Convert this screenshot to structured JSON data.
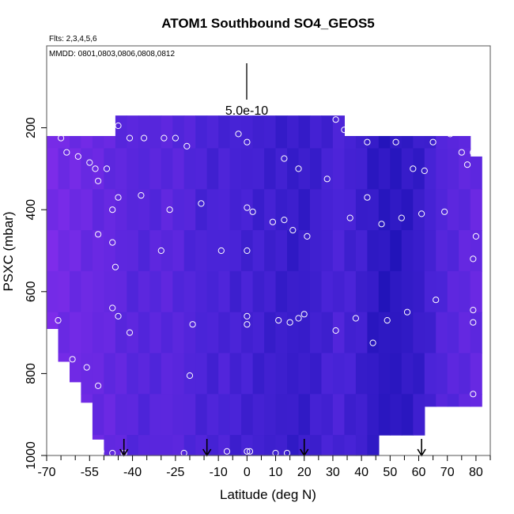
{
  "chart_data": {
    "type": "heatmap",
    "title": "ATOM1 Southbound SO4_GEOS5",
    "flights_label": "Flts: 2,3,4,5,6",
    "dates_label": "MMDD: 0801,0803,0806,0808,0812",
    "scale_label": "5.0e-10",
    "xlabel": "Latitude (deg N)",
    "ylabel": "PSXC (mbar)",
    "xlim": [
      -70,
      85
    ],
    "ylim": [
      1000,
      0
    ],
    "x_ticks": [
      -70,
      -55,
      -40,
      -25,
      -10,
      0,
      10,
      20,
      30,
      40,
      50,
      60,
      70,
      80
    ],
    "x_minor_ticks": [
      -65,
      -60,
      -50,
      -45,
      -35,
      -30,
      -20,
      -15,
      -5,
      5,
      15,
      25,
      35,
      45,
      55,
      65,
      75,
      85
    ],
    "y_ticks": [
      200,
      400,
      600,
      800,
      1000
    ],
    "grid": false,
    "colors": {
      "low": "#0a0aa8",
      "mid": "#4a24d8",
      "high": "#8a2eee",
      "outline": "#555555",
      "marker": "#ffffff",
      "arrow": "#000000"
    },
    "columns": [
      {
        "lat": -68,
        "p_top": 220,
        "p_bot": 690,
        "v": 0.85
      },
      {
        "lat": -64,
        "p_top": 220,
        "p_bot": 770,
        "v": 0.8
      },
      {
        "lat": -60,
        "p_top": 220,
        "p_bot": 820,
        "v": 0.78
      },
      {
        "lat": -56,
        "p_top": 220,
        "p_bot": 870,
        "v": 0.75
      },
      {
        "lat": -52,
        "p_top": 220,
        "p_bot": 960,
        "v": 0.72
      },
      {
        "lat": -48,
        "p_top": 220,
        "p_bot": 1000,
        "v": 0.7
      },
      {
        "lat": -44,
        "p_top": 170,
        "p_bot": 1000,
        "v": 0.65
      },
      {
        "lat": -40,
        "p_top": 170,
        "p_bot": 1000,
        "v": 0.6
      },
      {
        "lat": -36,
        "p_top": 170,
        "p_bot": 1000,
        "v": 0.58
      },
      {
        "lat": -32,
        "p_top": 170,
        "p_bot": 1000,
        "v": 0.6
      },
      {
        "lat": -28,
        "p_top": 170,
        "p_bot": 1000,
        "v": 0.62
      },
      {
        "lat": -24,
        "p_top": 170,
        "p_bot": 1000,
        "v": 0.6
      },
      {
        "lat": -20,
        "p_top": 170,
        "p_bot": 1000,
        "v": 0.55
      },
      {
        "lat": -16,
        "p_top": 170,
        "p_bot": 1000,
        "v": 0.5
      },
      {
        "lat": -12,
        "p_top": 170,
        "p_bot": 1000,
        "v": 0.48
      },
      {
        "lat": -8,
        "p_top": 170,
        "p_bot": 1000,
        "v": 0.5
      },
      {
        "lat": -4,
        "p_top": 170,
        "p_bot": 1000,
        "v": 0.45
      },
      {
        "lat": 0,
        "p_top": 170,
        "p_bot": 1000,
        "v": 0.45
      },
      {
        "lat": 4,
        "p_top": 170,
        "p_bot": 1000,
        "v": 0.42
      },
      {
        "lat": 8,
        "p_top": 170,
        "p_bot": 1000,
        "v": 0.4
      },
      {
        "lat": 12,
        "p_top": 170,
        "p_bot": 1000,
        "v": 0.38
      },
      {
        "lat": 16,
        "p_top": 170,
        "p_bot": 1000,
        "v": 0.35
      },
      {
        "lat": 20,
        "p_top": 170,
        "p_bot": 1000,
        "v": 0.35
      },
      {
        "lat": 24,
        "p_top": 170,
        "p_bot": 1000,
        "v": 0.4
      },
      {
        "lat": 28,
        "p_top": 170,
        "p_bot": 1000,
        "v": 0.45
      },
      {
        "lat": 32,
        "p_top": 170,
        "p_bot": 1000,
        "v": 0.5
      },
      {
        "lat": 36,
        "p_top": 220,
        "p_bot": 1000,
        "v": 0.45
      },
      {
        "lat": 40,
        "p_top": 220,
        "p_bot": 1000,
        "v": 0.4
      },
      {
        "lat": 44,
        "p_top": 220,
        "p_bot": 1000,
        "v": 0.3
      },
      {
        "lat": 48,
        "p_top": 220,
        "p_bot": 950,
        "v": 0.25
      },
      {
        "lat": 52,
        "p_top": 220,
        "p_bot": 950,
        "v": 0.25
      },
      {
        "lat": 56,
        "p_top": 220,
        "p_bot": 950,
        "v": 0.3
      },
      {
        "lat": 60,
        "p_top": 220,
        "p_bot": 950,
        "v": 0.35
      },
      {
        "lat": 64,
        "p_top": 220,
        "p_bot": 880,
        "v": 0.45
      },
      {
        "lat": 68,
        "p_top": 220,
        "p_bot": 880,
        "v": 0.55
      },
      {
        "lat": 72,
        "p_top": 220,
        "p_bot": 880,
        "v": 0.6
      },
      {
        "lat": 76,
        "p_top": 220,
        "p_bot": 880,
        "v": 0.65
      },
      {
        "lat": 80,
        "p_top": 270,
        "p_bot": 880,
        "v": 0.7
      }
    ],
    "points": [
      {
        "lat": -65,
        "p": 225
      },
      {
        "lat": -63,
        "p": 260
      },
      {
        "lat": -59,
        "p": 270
      },
      {
        "lat": -55,
        "p": 285
      },
      {
        "lat": -53,
        "p": 300
      },
      {
        "lat": -49,
        "p": 300
      },
      {
        "lat": -45,
        "p": 195
      },
      {
        "lat": -41,
        "p": 225
      },
      {
        "lat": -36,
        "p": 225
      },
      {
        "lat": -29,
        "p": 225
      },
      {
        "lat": -25,
        "p": 225
      },
      {
        "lat": -21,
        "p": 245
      },
      {
        "lat": -52,
        "p": 330
      },
      {
        "lat": -45,
        "p": 370
      },
      {
        "lat": -37,
        "p": 365
      },
      {
        "lat": -47,
        "p": 400
      },
      {
        "lat": -27,
        "p": 400
      },
      {
        "lat": -16,
        "p": 385
      },
      {
        "lat": -52,
        "p": 460
      },
      {
        "lat": -47,
        "p": 480
      },
      {
        "lat": -30,
        "p": 500
      },
      {
        "lat": -46,
        "p": 540
      },
      {
        "lat": -9,
        "p": 500
      },
      {
        "lat": 0,
        "p": 500
      },
      {
        "lat": -3,
        "p": 215
      },
      {
        "lat": 0,
        "p": 235
      },
      {
        "lat": 13,
        "p": 275
      },
      {
        "lat": 18,
        "p": 300
      },
      {
        "lat": 28,
        "p": 325
      },
      {
        "lat": 31,
        "p": 180
      },
      {
        "lat": 34,
        "p": 205
      },
      {
        "lat": 42,
        "p": 235
      },
      {
        "lat": 52,
        "p": 235
      },
      {
        "lat": 65,
        "p": 235
      },
      {
        "lat": 71,
        "p": 215
      },
      {
        "lat": 75,
        "p": 260
      },
      {
        "lat": 79,
        "p": 260
      },
      {
        "lat": 58,
        "p": 300
      },
      {
        "lat": 62,
        "p": 305
      },
      {
        "lat": 77,
        "p": 290
      },
      {
        "lat": 0,
        "p": 395
      },
      {
        "lat": 2,
        "p": 405
      },
      {
        "lat": 9,
        "p": 430
      },
      {
        "lat": 13,
        "p": 425
      },
      {
        "lat": 16,
        "p": 450
      },
      {
        "lat": 21,
        "p": 465
      },
      {
        "lat": 36,
        "p": 420
      },
      {
        "lat": 42,
        "p": 370
      },
      {
        "lat": 47,
        "p": 435
      },
      {
        "lat": 54,
        "p": 420
      },
      {
        "lat": 61,
        "p": 410
      },
      {
        "lat": 69,
        "p": 405
      },
      {
        "lat": 80,
        "p": 465
      },
      {
        "lat": 79,
        "p": 520
      },
      {
        "lat": -47,
        "p": 640
      },
      {
        "lat": -45,
        "p": 660
      },
      {
        "lat": -41,
        "p": 700
      },
      {
        "lat": -19,
        "p": 680
      },
      {
        "lat": 0,
        "p": 660
      },
      {
        "lat": 0,
        "p": 680
      },
      {
        "lat": 11,
        "p": 670
      },
      {
        "lat": 15,
        "p": 675
      },
      {
        "lat": 18,
        "p": 665
      },
      {
        "lat": 20,
        "p": 655
      },
      {
        "lat": 31,
        "p": 695
      },
      {
        "lat": 38,
        "p": 665
      },
      {
        "lat": 49,
        "p": 670
      },
      {
        "lat": 56,
        "p": 650
      },
      {
        "lat": 66,
        "p": 620
      },
      {
        "lat": 44,
        "p": 725
      },
      {
        "lat": 79,
        "p": 645
      },
      {
        "lat": 79,
        "p": 675
      },
      {
        "lat": -66,
        "p": 670
      },
      {
        "lat": -61,
        "p": 765
      },
      {
        "lat": -56,
        "p": 785
      },
      {
        "lat": -52,
        "p": 830
      },
      {
        "lat": -20,
        "p": 805
      },
      {
        "lat": 79,
        "p": 850
      },
      {
        "lat": 79,
        "p": 900
      },
      {
        "lat": -51,
        "p": 990
      },
      {
        "lat": -47,
        "p": 995
      },
      {
        "lat": -43,
        "p": 1000
      },
      {
        "lat": -22,
        "p": 1000
      },
      {
        "lat": -7,
        "p": 990
      },
      {
        "lat": 0,
        "p": 990
      },
      {
        "lat": 1,
        "p": 990
      },
      {
        "lat": 10,
        "p": 995
      },
      {
        "lat": 14,
        "p": 995
      },
      {
        "lat": 37,
        "p": 1010
      },
      {
        "lat": 44,
        "p": 1005
      },
      {
        "lat": 48,
        "p": 980
      }
    ],
    "arrows_at_lat": [
      -43,
      -14,
      20,
      61
    ]
  }
}
